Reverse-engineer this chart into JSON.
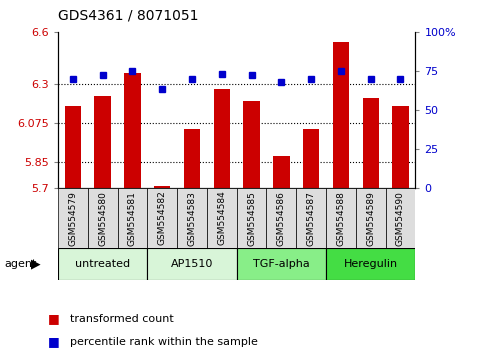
{
  "title": "GDS4361 / 8071051",
  "samples": [
    "GSM554579",
    "GSM554580",
    "GSM554581",
    "GSM554582",
    "GSM554583",
    "GSM554584",
    "GSM554585",
    "GSM554586",
    "GSM554587",
    "GSM554588",
    "GSM554589",
    "GSM554590"
  ],
  "red_values": [
    6.17,
    6.23,
    6.36,
    5.71,
    6.04,
    6.27,
    6.2,
    5.88,
    6.04,
    6.54,
    6.22,
    6.17
  ],
  "blue_values": [
    70,
    72,
    75,
    63,
    70,
    73,
    72,
    68,
    70,
    75,
    70,
    70
  ],
  "ylim_left": [
    5.7,
    6.6
  ],
  "ylim_right": [
    0,
    100
  ],
  "yticks_left": [
    5.7,
    5.85,
    6.075,
    6.3,
    6.6
  ],
  "yticks_right": [
    0,
    25,
    50,
    75,
    100
  ],
  "ytick_labels_right": [
    "0",
    "25",
    "50",
    "75",
    "100%"
  ],
  "hlines": [
    5.85,
    6.075,
    6.3
  ],
  "groups": [
    {
      "label": "untreated",
      "start": 0,
      "end": 3,
      "color": "#D8F5D8"
    },
    {
      "label": "AP1510",
      "start": 3,
      "end": 6,
      "color": "#D8F5D8"
    },
    {
      "label": "TGF-alpha",
      "start": 6,
      "end": 9,
      "color": "#88EE88"
    },
    {
      "label": "Heregulin",
      "start": 9,
      "end": 12,
      "color": "#44DD44"
    }
  ],
  "bar_color": "#CC0000",
  "dot_color": "#0000CC",
  "bar_width": 0.55,
  "tick_label_color_left": "#CC0000",
  "tick_label_color_right": "#0000CC",
  "sample_box_color": "#DDDDDD",
  "legend_items": [
    {
      "label": "transformed count",
      "color": "#CC0000"
    },
    {
      "label": "percentile rank within the sample",
      "color": "#0000CC"
    }
  ],
  "title_fontsize": 10,
  "tick_fontsize": 8,
  "sample_fontsize": 6.5,
  "group_fontsize": 8,
  "legend_fontsize": 8
}
